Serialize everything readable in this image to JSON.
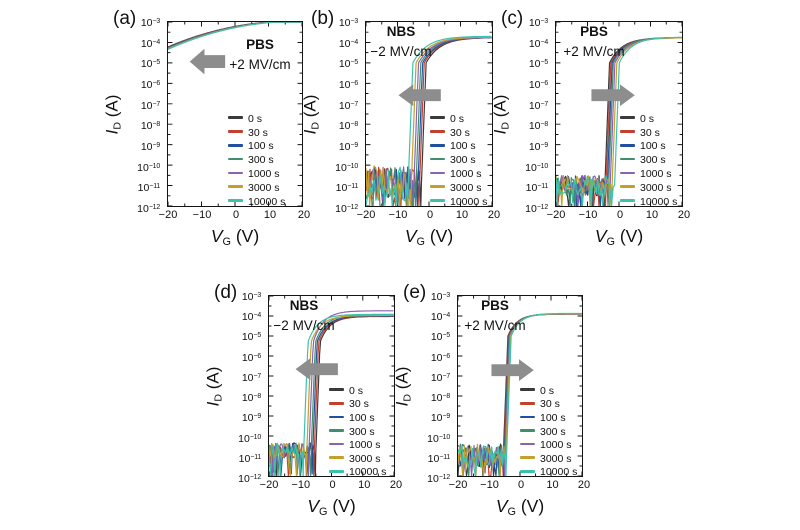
{
  "figure": {
    "background": "#ffffff",
    "arrow_color": "#8d8d8d",
    "axis_color": "#141414",
    "axes": {
      "x_label": {
        "var": "V",
        "sub": "G",
        "unit": " (V)"
      },
      "y_label": {
        "var": "I",
        "sub": "D",
        "unit": " (A)"
      },
      "x_ticks": [
        {
          "label": "−20",
          "v": -20
        },
        {
          "label": "−10",
          "v": -10
        },
        {
          "label": "0",
          "v": 0
        },
        {
          "label": "10",
          "v": 10
        },
        {
          "label": "20",
          "v": 20
        }
      ],
      "x_minor_ticks": [
        -15,
        -5,
        5,
        15
      ],
      "y_tick_base": "10",
      "y_tick_exponents": [
        "−3",
        "−4",
        "−5",
        "−6",
        "−7",
        "−8",
        "−9",
        "−10",
        "−11",
        "−12"
      ],
      "xlim": [
        -20,
        20
      ],
      "ylim_log10": [
        -12,
        -3
      ],
      "x_scale": "linear",
      "y_scale": "log10"
    }
  },
  "chart_data": [
    {
      "panel": "a",
      "letter": "(a)",
      "type": "line",
      "stress_line1": "PBS",
      "stress_line2": "+2 MV/cm",
      "arrow_direction": "left",
      "xlabel": "V_G (V)",
      "ylabel": "I_D (A)",
      "xlim": [
        -20,
        20
      ],
      "ylim_log10": [
        -12,
        -3
      ],
      "model": {
        "kind": "always_on",
        "log_i_at_minus20": -4.22,
        "log_i_at_plus20": -2.94,
        "curve_exponent": 2.2,
        "series_spread_per_step": -0.02
      },
      "series": [
        {
          "name": "0 s",
          "color": "#3a3a3a"
        },
        {
          "name": "30 s",
          "color": "#c2402e"
        },
        {
          "name": "100 s",
          "color": "#20509f"
        },
        {
          "name": "300 s",
          "color": "#3f8e6e"
        },
        {
          "name": "1000 s",
          "color": "#8a62b5"
        },
        {
          "name": "3000 s",
          "color": "#c3a02b"
        },
        {
          "name": "10000 s",
          "color": "#3cc1ad"
        }
      ]
    },
    {
      "panel": "b",
      "letter": "(b)",
      "type": "line",
      "stress_line1": "NBS",
      "stress_line2": "−2 MV/cm",
      "arrow_direction": "left",
      "xlabel": "V_G (V)",
      "ylabel": "I_D (A)",
      "xlim": [
        -20,
        20
      ],
      "ylim_log10": [
        -12,
        -3
      ],
      "model": {
        "kind": "switching",
        "log_i_sat": -3.76,
        "ss_dec_per_v": 4.0,
        "knee_log": -5,
        "tau": 4.5,
        "noise_floor_log": -10.9,
        "noise_jitter": 0.85
      },
      "series": [
        {
          "name": "0 s",
          "color": "#3a3a3a",
          "v_on": -2.4,
          "log_sat_off": 0
        },
        {
          "name": "30 s",
          "color": "#c2402e",
          "v_on": -3.0,
          "log_sat_off": 0
        },
        {
          "name": "100 s",
          "color": "#20509f",
          "v_on": -3.5,
          "log_sat_off": 0
        },
        {
          "name": "300 s",
          "color": "#3f8e6e",
          "v_on": -4.1,
          "log_sat_off": 0.02
        },
        {
          "name": "1000 s",
          "color": "#8a62b5",
          "v_on": -4.8,
          "log_sat_off": 0
        },
        {
          "name": "3000 s",
          "color": "#c3a02b",
          "v_on": -5.6,
          "log_sat_off": 0.02
        },
        {
          "name": "10000 s",
          "color": "#3cc1ad",
          "v_on": -6.6,
          "log_sat_off": 0.06
        }
      ]
    },
    {
      "panel": "c",
      "letter": "(c)",
      "type": "line",
      "stress_line1": "PBS",
      "stress_line2": "+2 MV/cm",
      "arrow_direction": "right",
      "xlabel": "V_G (V)",
      "ylabel": "I_D (A)",
      "xlim": [
        -20,
        20
      ],
      "ylim_log10": [
        -12,
        -3
      ],
      "model": {
        "kind": "switching",
        "log_i_sat": -3.77,
        "ss_dec_per_v": 4.0,
        "knee_log": -5,
        "tau": 4.0,
        "noise_floor_log": -11.0,
        "noise_jitter": 0.5
      },
      "series": [
        {
          "name": "0 s",
          "color": "#3a3a3a",
          "v_on": -4.5,
          "log_sat_off": 0
        },
        {
          "name": "30 s",
          "color": "#c2402e",
          "v_on": -4.1,
          "log_sat_off": 0
        },
        {
          "name": "100 s",
          "color": "#20509f",
          "v_on": -3.7,
          "log_sat_off": 0
        },
        {
          "name": "300 s",
          "color": "#3f8e6e",
          "v_on": -3.3,
          "log_sat_off": 0.02
        },
        {
          "name": "1000 s",
          "color": "#8a62b5",
          "v_on": -2.8,
          "log_sat_off": 0
        },
        {
          "name": "3000 s",
          "color": "#c3a02b",
          "v_on": -2.2,
          "log_sat_off": 0
        },
        {
          "name": "10000 s",
          "color": "#3cc1ad",
          "v_on": -1.4,
          "log_sat_off": 0.03
        }
      ]
    },
    {
      "panel": "d",
      "letter": "(d)",
      "type": "line",
      "stress_line1": "NBS",
      "stress_line2": "−2 MV/cm",
      "arrow_direction": "left",
      "xlabel": "V_G (V)",
      "ylabel": "I_D (A)",
      "xlim": [
        -20,
        20
      ],
      "ylim_log10": [
        -12,
        -3
      ],
      "model": {
        "kind": "switching",
        "log_i_sat": -4.02,
        "ss_dec_per_v": 4.0,
        "knee_log": -5.3,
        "tau": 3.2,
        "noise_floor_log": -10.72,
        "noise_jitter": 0.38
      },
      "series": [
        {
          "name": "0 s",
          "color": "#3a3a3a",
          "v_on": -5.0,
          "log_sat_off": 0
        },
        {
          "name": "30 s",
          "color": "#c2402e",
          "v_on": -5.5,
          "log_sat_off": 0.01
        },
        {
          "name": "100 s",
          "color": "#20509f",
          "v_on": -6.0,
          "log_sat_off": 0.02
        },
        {
          "name": "300 s",
          "color": "#3f8e6e",
          "v_on": -6.5,
          "log_sat_off": 0.08
        },
        {
          "name": "1000 s",
          "color": "#8a62b5",
          "v_on": -7.2,
          "log_sat_off": 0.28
        },
        {
          "name": "3000 s",
          "color": "#c3a02b",
          "v_on": -7.9,
          "log_sat_off": 0.04
        },
        {
          "name": "10000 s",
          "color": "#3cc1ad",
          "v_on": -8.9,
          "log_sat_off": 0.1
        }
      ]
    },
    {
      "panel": "e",
      "letter": "(e)",
      "type": "line",
      "stress_line1": "PBS",
      "stress_line2": "+2 MV/cm",
      "arrow_direction": "right",
      "xlabel": "V_G (V)",
      "ylabel": "I_D (A)",
      "xlim": [
        -20,
        20
      ],
      "ylim_log10": [
        -12,
        -3
      ],
      "model": {
        "kind": "switching",
        "log_i_sat": -3.9,
        "ss_dec_per_v": 4.0,
        "knee_log": -5,
        "tau": 3.0,
        "noise_floor_log": -11.0,
        "noise_jitter": 0.6
      },
      "series": [
        {
          "name": "0 s",
          "color": "#3a3a3a",
          "v_on": -5.4,
          "log_sat_off": 0
        },
        {
          "name": "30 s",
          "color": "#c2402e",
          "v_on": -5.25,
          "log_sat_off": 0
        },
        {
          "name": "100 s",
          "color": "#20509f",
          "v_on": -5.1,
          "log_sat_off": 0
        },
        {
          "name": "300 s",
          "color": "#3f8e6e",
          "v_on": -4.95,
          "log_sat_off": 0.01
        },
        {
          "name": "1000 s",
          "color": "#8a62b5",
          "v_on": -4.8,
          "log_sat_off": 0
        },
        {
          "name": "3000 s",
          "color": "#c3a02b",
          "v_on": -4.6,
          "log_sat_off": 0.01
        },
        {
          "name": "10000 s",
          "color": "#3cc1ad",
          "v_on": -4.35,
          "log_sat_off": 0.03
        }
      ]
    }
  ]
}
